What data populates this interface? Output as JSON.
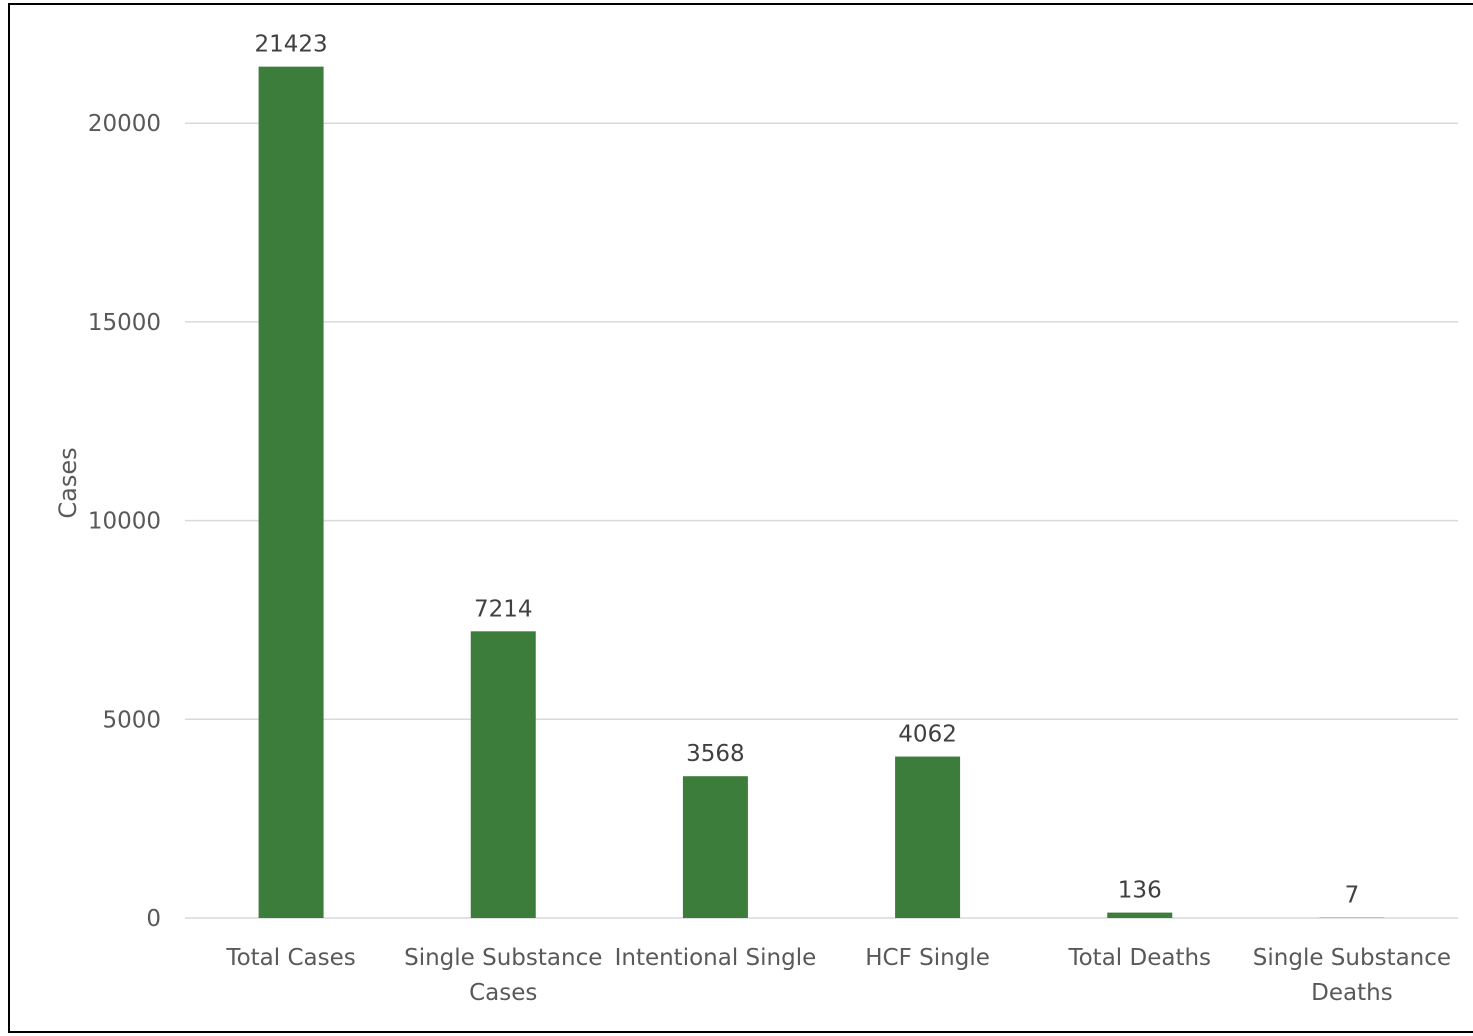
{
  "chart_data": {
    "type": "bar",
    "categories": [
      [
        "Total Cases"
      ],
      [
        "Single Substance",
        "Cases"
      ],
      [
        "Intentional Single"
      ],
      [
        "HCF Single"
      ],
      [
        "Total Deaths"
      ],
      [
        "Single Substance",
        "Deaths"
      ]
    ],
    "values": [
      21423,
      7214,
      3568,
      4062,
      136,
      7
    ],
    "data_labels": [
      "21423",
      "7214",
      "3568",
      "4062",
      "136",
      "7"
    ],
    "title": "",
    "xlabel": "",
    "ylabel": "Cases",
    "ylim": [
      0,
      22000
    ],
    "yticks": [
      0,
      5000,
      10000,
      15000,
      20000
    ],
    "ytick_labels": [
      "0",
      "5000",
      "10000",
      "15000",
      "20000"
    ],
    "grid": true,
    "legend": "none",
    "colors": {
      "bar": "#3d7d3c",
      "grid": "#d9d9d9",
      "axis_text": "#595959",
      "label_text": "#404040"
    }
  }
}
